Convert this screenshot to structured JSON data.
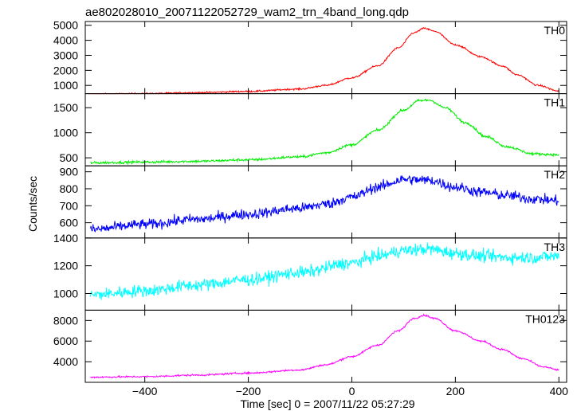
{
  "chart_data": {
    "type": "line",
    "title": "ae802028010_20071122052729_wam2_trn_4band_long.qdp",
    "xlabel": "Time [sec] 0 = 2007/11/22 05:27:29",
    "ylabel": "Counts/sec",
    "xlim": [
      -515,
      415
    ],
    "x_ticks": [
      -400,
      -200,
      0,
      200,
      400
    ],
    "grid": false,
    "panels": [
      {
        "label": "TH0",
        "color": "#ff0000",
        "ylim": [
          450,
          5250
        ],
        "y_ticks": [
          1000,
          2000,
          3000,
          4000,
          5000
        ],
        "noise": 40,
        "keypoints": [
          [
            -505,
            420
          ],
          [
            -400,
            450
          ],
          [
            -300,
            520
          ],
          [
            -200,
            600
          ],
          [
            -100,
            760
          ],
          [
            -50,
            1000
          ],
          [
            0,
            1500
          ],
          [
            50,
            2300
          ],
          [
            90,
            3500
          ],
          [
            120,
            4500
          ],
          [
            140,
            4800
          ],
          [
            160,
            4600
          ],
          [
            200,
            3700
          ],
          [
            250,
            2900
          ],
          [
            290,
            2300
          ],
          [
            320,
            1700
          ],
          [
            360,
            1000
          ],
          [
            400,
            620
          ]
        ]
      },
      {
        "label": "TH1",
        "color": "#00ee00",
        "ylim": [
          340,
          1780
        ],
        "y_ticks": [
          500,
          1000,
          1500
        ],
        "noise": 18,
        "keypoints": [
          [
            -505,
            400
          ],
          [
            -400,
            415
          ],
          [
            -300,
            430
          ],
          [
            -200,
            460
          ],
          [
            -100,
            520
          ],
          [
            -50,
            600
          ],
          [
            0,
            760
          ],
          [
            50,
            1050
          ],
          [
            100,
            1450
          ],
          [
            130,
            1640
          ],
          [
            150,
            1650
          ],
          [
            180,
            1500
          ],
          [
            220,
            1200
          ],
          [
            260,
            920
          ],
          [
            300,
            720
          ],
          [
            350,
            580
          ],
          [
            400,
            560
          ]
        ]
      },
      {
        "label": "TH2",
        "color": "#0000ff",
        "ylim": [
          510,
          935
        ],
        "y_ticks": [
          600,
          700,
          800,
          900
        ],
        "noise": 22,
        "keypoints": [
          [
            -505,
            560
          ],
          [
            -400,
            590
          ],
          [
            -300,
            620
          ],
          [
            -200,
            650
          ],
          [
            -100,
            685
          ],
          [
            -50,
            710
          ],
          [
            0,
            750
          ],
          [
            50,
            810
          ],
          [
            100,
            855
          ],
          [
            150,
            850
          ],
          [
            200,
            810
          ],
          [
            250,
            780
          ],
          [
            300,
            760
          ],
          [
            350,
            740
          ],
          [
            400,
            730
          ]
        ]
      },
      {
        "label": "TH3",
        "color": "#00ffff",
        "ylim": [
          880,
          1400
        ],
        "y_ticks": [
          1000,
          1200,
          1400
        ],
        "noise": 32,
        "keypoints": [
          [
            -505,
            990
          ],
          [
            -400,
            1020
          ],
          [
            -300,
            1060
          ],
          [
            -200,
            1100
          ],
          [
            -100,
            1150
          ],
          [
            0,
            1220
          ],
          [
            50,
            1270
          ],
          [
            100,
            1310
          ],
          [
            150,
            1320
          ],
          [
            200,
            1290
          ],
          [
            250,
            1270
          ],
          [
            300,
            1260
          ],
          [
            350,
            1260
          ],
          [
            400,
            1270
          ]
        ]
      },
      {
        "label": "TH0123",
        "color": "#ff00ff",
        "ylim": [
          2000,
          9000
        ],
        "y_ticks": [
          4000,
          6000,
          8000
        ],
        "noise": 60,
        "keypoints": [
          [
            -505,
            2500
          ],
          [
            -400,
            2550
          ],
          [
            -300,
            2700
          ],
          [
            -200,
            2900
          ],
          [
            -100,
            3200
          ],
          [
            -50,
            3700
          ],
          [
            0,
            4500
          ],
          [
            50,
            5600
          ],
          [
            90,
            7000
          ],
          [
            120,
            8200
          ],
          [
            140,
            8500
          ],
          [
            160,
            8200
          ],
          [
            200,
            7000
          ],
          [
            250,
            6000
          ],
          [
            290,
            5200
          ],
          [
            330,
            4300
          ],
          [
            370,
            3500
          ],
          [
            400,
            3200
          ]
        ]
      }
    ]
  }
}
